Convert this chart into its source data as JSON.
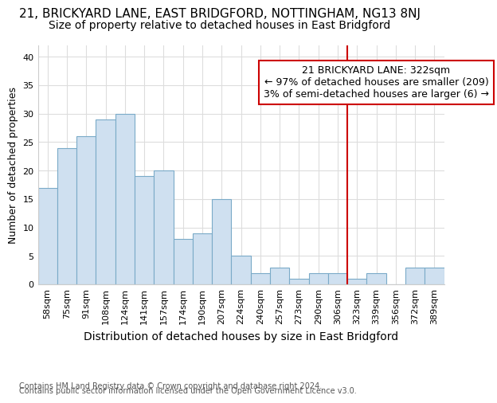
{
  "title_main": "21, BRICKYARD LANE, EAST BRIDGFORD, NOTTINGHAM, NG13 8NJ",
  "title_sub": "Size of property relative to detached houses in East Bridgford",
  "xlabel": "Distribution of detached houses by size in East Bridgford",
  "ylabel": "Number of detached properties",
  "footer_line1": "Contains HM Land Registry data © Crown copyright and database right 2024.",
  "footer_line2": "Contains public sector information licensed under the Open Government Licence v3.0.",
  "categories": [
    "58sqm",
    "75sqm",
    "91sqm",
    "108sqm",
    "124sqm",
    "141sqm",
    "157sqm",
    "174sqm",
    "190sqm",
    "207sqm",
    "224sqm",
    "240sqm",
    "257sqm",
    "273sqm",
    "290sqm",
    "306sqm",
    "323sqm",
    "339sqm",
    "356sqm",
    "372sqm",
    "389sqm"
  ],
  "values": [
    17,
    24,
    26,
    29,
    30,
    19,
    20,
    8,
    9,
    15,
    5,
    2,
    3,
    1,
    2,
    2,
    1,
    2,
    0,
    3,
    3
  ],
  "bar_color": "#cfe0f0",
  "bar_edge_color": "#7aaac8",
  "annotation_text_line1": "21 BRICKYARD LANE: 322sqm",
  "annotation_text_line2": "← 97% of detached houses are smaller (209)",
  "annotation_text_line3": "3% of semi-detached houses are larger (6) →",
  "annotation_box_facecolor": "white",
  "annotation_box_edgecolor": "#cc0000",
  "vline_color": "#cc0000",
  "ylim": [
    0,
    42
  ],
  "yticks": [
    0,
    5,
    10,
    15,
    20,
    25,
    30,
    35,
    40
  ],
  "bg_color": "#ffffff",
  "grid_color": "#dddddd",
  "title_fontsize": 11,
  "subtitle_fontsize": 10,
  "xlabel_fontsize": 10,
  "ylabel_fontsize": 9,
  "tick_fontsize": 8,
  "annotation_fontsize": 9,
  "footer_fontsize": 7
}
